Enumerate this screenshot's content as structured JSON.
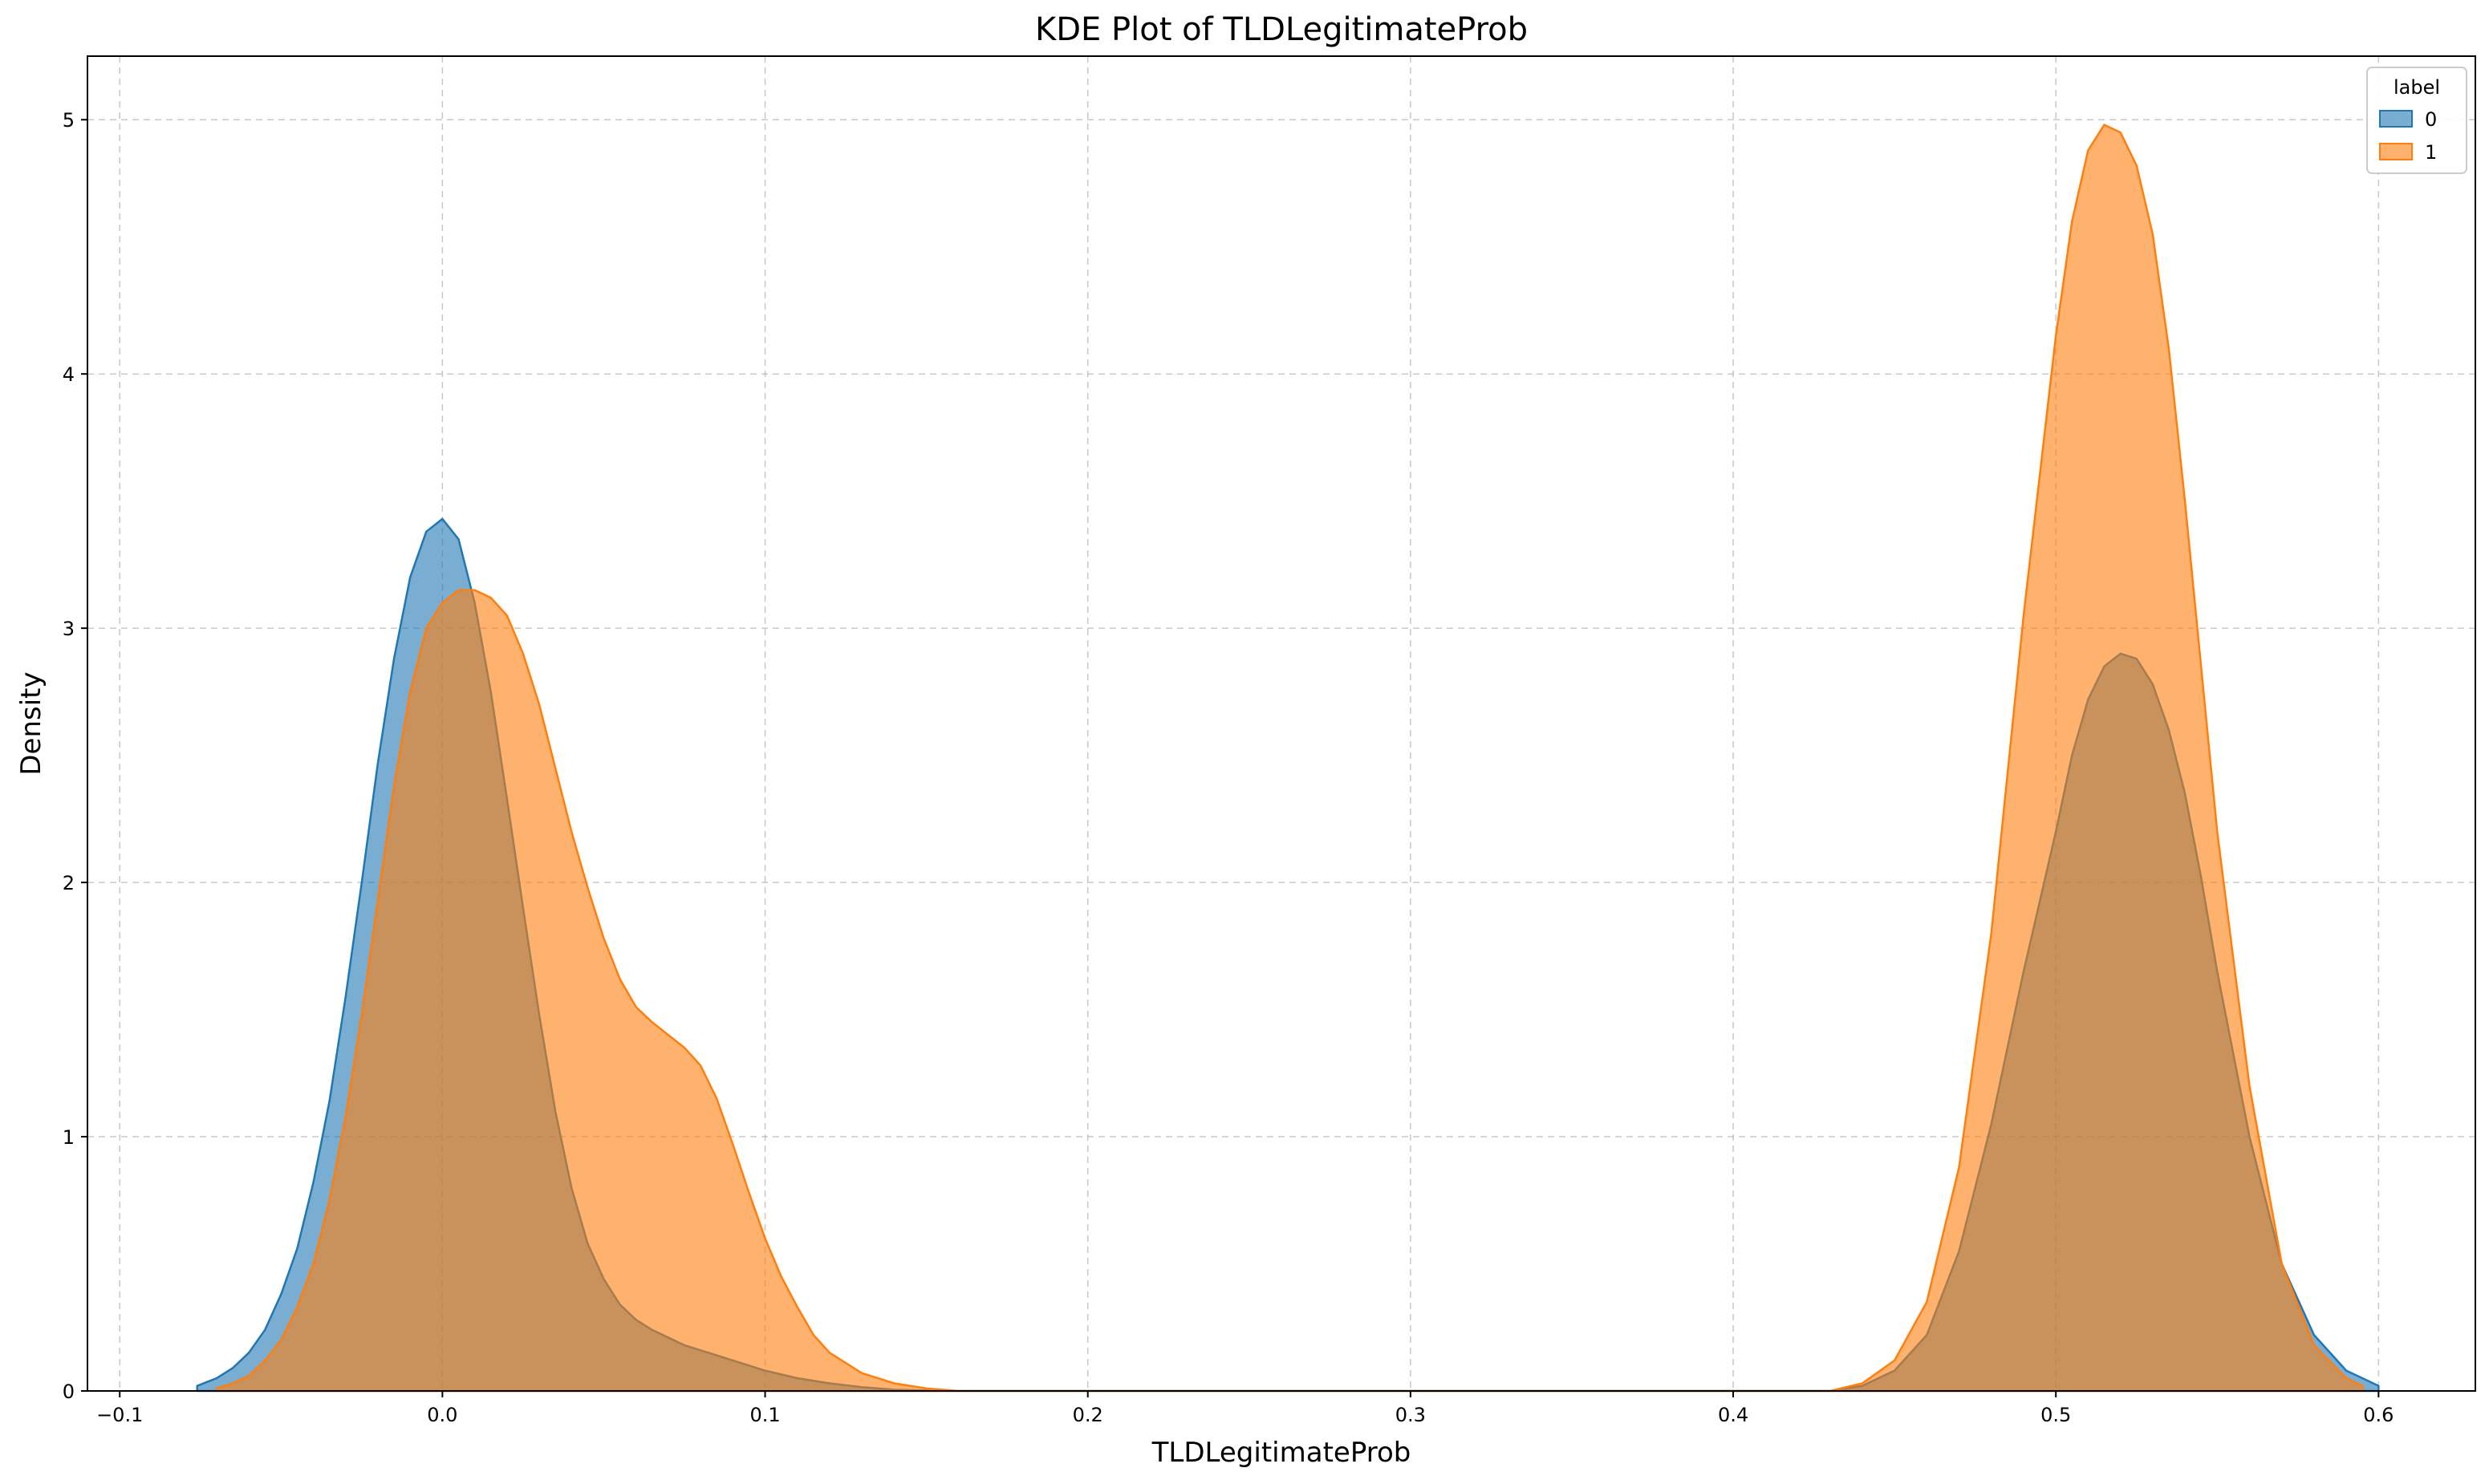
{
  "chart_data": {
    "type": "area",
    "title": "KDE Plot of TLDLegitimateProb",
    "xlabel": "TLDLegitimateProb",
    "ylabel": "Density",
    "xlim": [
      -0.11,
      0.63
    ],
    "ylim": [
      0,
      5.25
    ],
    "xticks": [
      -0.1,
      0.0,
      0.1,
      0.2,
      0.3,
      0.4,
      0.5,
      0.6
    ],
    "xtick_labels": [
      "−0.1",
      "0.0",
      "0.1",
      "0.2",
      "0.3",
      "0.4",
      "0.5",
      "0.6"
    ],
    "yticks": [
      0,
      1,
      2,
      3,
      4,
      5
    ],
    "ytick_labels": [
      "0",
      "1",
      "2",
      "3",
      "4",
      "5"
    ],
    "grid": true,
    "legend": {
      "title": "label",
      "position": "top-right"
    },
    "series": [
      {
        "name": "0",
        "color": "#1f77b4",
        "fill_opacity": 0.6,
        "x": [
          -0.076,
          -0.07,
          -0.065,
          -0.06,
          -0.055,
          -0.05,
          -0.045,
          -0.04,
          -0.035,
          -0.03,
          -0.025,
          -0.02,
          -0.015,
          -0.01,
          -0.005,
          0.0,
          0.005,
          0.01,
          0.015,
          0.02,
          0.025,
          0.03,
          0.035,
          0.04,
          0.045,
          0.05,
          0.055,
          0.06,
          0.065,
          0.07,
          0.075,
          0.08,
          0.085,
          0.09,
          0.1,
          0.11,
          0.12,
          0.13,
          0.14,
          0.15,
          0.16,
          0.43,
          0.44,
          0.45,
          0.46,
          0.47,
          0.48,
          0.49,
          0.5,
          0.505,
          0.51,
          0.515,
          0.52,
          0.525,
          0.53,
          0.535,
          0.54,
          0.545,
          0.55,
          0.56,
          0.57,
          0.58,
          0.59,
          0.6
        ],
        "y": [
          0.02,
          0.05,
          0.09,
          0.15,
          0.24,
          0.38,
          0.56,
          0.82,
          1.14,
          1.55,
          2.0,
          2.47,
          2.88,
          3.2,
          3.38,
          3.43,
          3.35,
          3.1,
          2.75,
          2.33,
          1.9,
          1.48,
          1.1,
          0.8,
          0.58,
          0.44,
          0.34,
          0.28,
          0.24,
          0.21,
          0.18,
          0.16,
          0.14,
          0.12,
          0.08,
          0.05,
          0.03,
          0.015,
          0.005,
          0.002,
          0.0,
          0.0,
          0.02,
          0.08,
          0.22,
          0.55,
          1.05,
          1.65,
          2.2,
          2.5,
          2.72,
          2.85,
          2.9,
          2.88,
          2.78,
          2.6,
          2.35,
          2.02,
          1.65,
          1.0,
          0.5,
          0.22,
          0.08,
          0.02
        ]
      },
      {
        "name": "1",
        "color": "#ff7f0e",
        "fill_opacity": 0.6,
        "x": [
          -0.07,
          -0.065,
          -0.06,
          -0.055,
          -0.05,
          -0.045,
          -0.04,
          -0.035,
          -0.03,
          -0.025,
          -0.02,
          -0.015,
          -0.01,
          -0.005,
          0.0,
          0.005,
          0.01,
          0.015,
          0.02,
          0.025,
          0.03,
          0.035,
          0.04,
          0.045,
          0.05,
          0.055,
          0.06,
          0.065,
          0.07,
          0.075,
          0.08,
          0.085,
          0.09,
          0.095,
          0.1,
          0.105,
          0.11,
          0.115,
          0.12,
          0.13,
          0.14,
          0.15,
          0.16,
          0.43,
          0.44,
          0.45,
          0.46,
          0.47,
          0.48,
          0.49,
          0.5,
          0.505,
          0.51,
          0.515,
          0.52,
          0.525,
          0.53,
          0.535,
          0.54,
          0.545,
          0.55,
          0.56,
          0.57,
          0.58,
          0.59,
          0.595
        ],
        "y": [
          0.01,
          0.03,
          0.06,
          0.12,
          0.2,
          0.33,
          0.5,
          0.75,
          1.08,
          1.48,
          1.93,
          2.38,
          2.75,
          3.0,
          3.1,
          3.15,
          3.15,
          3.12,
          3.05,
          2.9,
          2.7,
          2.45,
          2.2,
          1.98,
          1.78,
          1.62,
          1.51,
          1.45,
          1.4,
          1.35,
          1.28,
          1.15,
          0.97,
          0.78,
          0.6,
          0.45,
          0.33,
          0.22,
          0.15,
          0.07,
          0.03,
          0.01,
          0.0,
          0.0,
          0.03,
          0.12,
          0.35,
          0.88,
          1.8,
          3.05,
          4.15,
          4.6,
          4.88,
          4.98,
          4.95,
          4.82,
          4.55,
          4.1,
          3.5,
          2.85,
          2.2,
          1.2,
          0.5,
          0.18,
          0.05,
          0.02
        ]
      }
    ]
  }
}
